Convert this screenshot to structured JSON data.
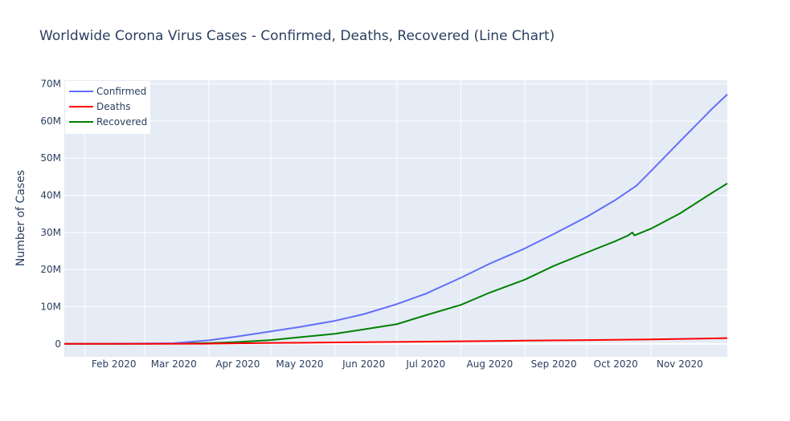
{
  "chart_data": {
    "type": "line",
    "title": "Worldwide Corona Virus Cases - Confirmed, Deaths, Recovered (Line Chart)",
    "xlabel": "",
    "ylabel": "Number of Cases",
    "x_ticks": [
      "Feb 2020",
      "Mar 2020",
      "Apr 2020",
      "May 2020",
      "Jun 2020",
      "Jul 2020",
      "Aug 2020",
      "Sep 2020",
      "Oct 2020",
      "Nov 2020"
    ],
    "y_ticks": [
      "0",
      "10M",
      "20M",
      "30M",
      "40M",
      "50M",
      "60M",
      "70M"
    ],
    "ylim": [
      -3500000,
      71000000
    ],
    "xlim": [
      "2020-01-22",
      "2020-12-08"
    ],
    "grid": true,
    "legend": {
      "position": "top-left"
    },
    "series": [
      {
        "name": "Confirmed",
        "color": "#636efa",
        "x": [
          "2020-01-22",
          "2020-02-01",
          "2020-02-15",
          "2020-03-01",
          "2020-03-15",
          "2020-04-01",
          "2020-04-15",
          "2020-05-01",
          "2020-05-15",
          "2020-06-01",
          "2020-06-15",
          "2020-07-01",
          "2020-07-15",
          "2020-08-01",
          "2020-08-15",
          "2020-09-01",
          "2020-09-15",
          "2020-10-01",
          "2020-10-15",
          "2020-10-25",
          "2020-11-01",
          "2020-11-15",
          "2020-12-01",
          "2020-12-08"
        ],
        "values": [
          555,
          12000,
          69000,
          88000,
          170000,
          950000,
          2000000,
          3350000,
          4550000,
          6200000,
          8000000,
          10700000,
          13500000,
          17800000,
          21600000,
          25700000,
          29600000,
          34200000,
          38800000,
          42600000,
          46500000,
          54500000,
          63500000,
          67200000
        ]
      },
      {
        "name": "Deaths",
        "color": "#ff0000",
        "x": [
          "2020-01-22",
          "2020-02-01",
          "2020-03-01",
          "2020-04-01",
          "2020-05-01",
          "2020-06-01",
          "2020-07-01",
          "2020-08-01",
          "2020-09-01",
          "2020-10-01",
          "2020-11-01",
          "2020-12-01",
          "2020-12-08"
        ],
        "values": [
          17,
          250,
          3000,
          50000,
          240000,
          375000,
          520000,
          690000,
          860000,
          1020000,
          1200000,
          1470000,
          1550000
        ]
      },
      {
        "name": "Recovered",
        "color": "#008000",
        "x": [
          "2020-01-22",
          "2020-02-01",
          "2020-02-15",
          "2020-03-01",
          "2020-03-15",
          "2020-04-01",
          "2020-04-15",
          "2020-05-01",
          "2020-05-15",
          "2020-06-01",
          "2020-06-15",
          "2020-07-01",
          "2020-07-15",
          "2020-08-01",
          "2020-08-15",
          "2020-09-01",
          "2020-09-15",
          "2020-10-01",
          "2020-10-15",
          "2020-10-21",
          "2020-10-23",
          "2020-10-24",
          "2020-11-01",
          "2020-11-15",
          "2020-12-01",
          "2020-12-08"
        ],
        "values": [
          28,
          280,
          9000,
          42000,
          70000,
          210000,
          500000,
          1000000,
          1800000,
          2700000,
          3900000,
          5300000,
          7700000,
          10500000,
          13800000,
          17300000,
          21000000,
          24600000,
          27700000,
          29200000,
          30000000,
          29200000,
          31000000,
          35100000,
          40800000,
          43200000
        ]
      }
    ]
  }
}
